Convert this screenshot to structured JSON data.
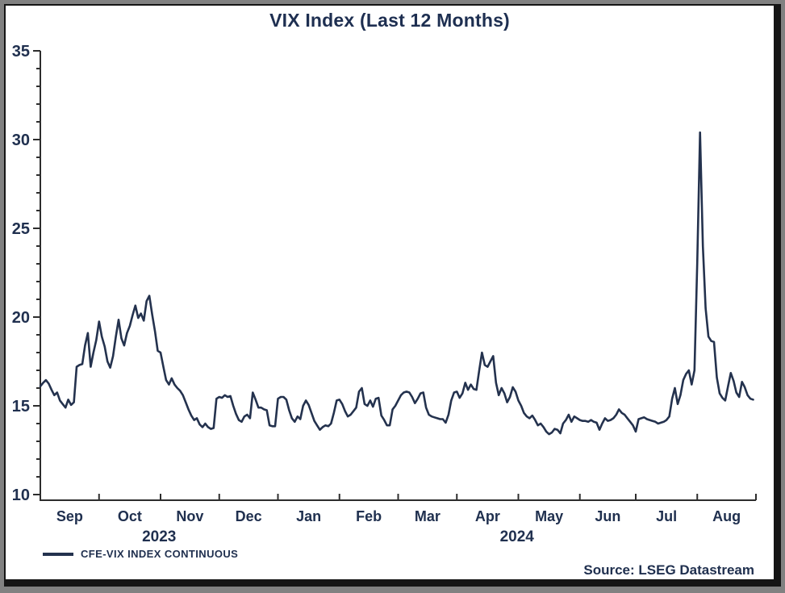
{
  "title": "VIX Index (Last 12 Months)",
  "legend": {
    "label": "CFE-VIX INDEX CONTINUOUS",
    "swatch_color": "#24324e"
  },
  "source": "Source: LSEG Datastream",
  "colors": {
    "line": "#24324e",
    "text": "#20304f",
    "axis": "#2d2d2d",
    "frame_border": "#151515",
    "page_background": "#818181",
    "canvas_background": "#ffffff"
  },
  "chart_data": {
    "type": "line",
    "title": "VIX Index (Last 12 Months)",
    "xlabel": "",
    "ylabel": "",
    "ylim": [
      10,
      35
    ],
    "y_major_step": 5,
    "y_minor_step": 1,
    "y_tick_labels": [
      "10",
      "15",
      "20",
      "25",
      "30",
      "35"
    ],
    "grid": false,
    "legend_position": "bottom-left",
    "x_month_labels": [
      "Sep",
      "Oct",
      "Nov",
      "Dec",
      "Jan",
      "Feb",
      "Mar",
      "Apr",
      "May",
      "Jun",
      "Jul",
      "Aug"
    ],
    "x_year_labels": [
      {
        "label": "2023",
        "month_span": [
          0,
          4
        ]
      },
      {
        "label": "2024",
        "month_span": [
          4,
          12
        ]
      }
    ],
    "month_day_offsets": [
      0,
      21,
      43,
      64,
      85,
      107,
      128,
      149,
      171,
      193,
      213,
      235,
      256
    ],
    "series": [
      {
        "name": "CFE-VIX INDEX CONTINUOUS",
        "values": [
          16.1,
          16.3,
          16.45,
          16.25,
          15.9,
          15.6,
          15.75,
          15.3,
          15.1,
          14.9,
          15.35,
          15.05,
          15.2,
          17.2,
          17.3,
          17.35,
          18.4,
          19.1,
          17.2,
          18.0,
          18.7,
          19.75,
          18.9,
          18.35,
          17.5,
          17.15,
          17.8,
          18.9,
          19.85,
          18.8,
          18.4,
          19.1,
          19.5,
          20.1,
          20.65,
          19.95,
          20.2,
          19.8,
          20.9,
          21.2,
          20.15,
          19.2,
          18.1,
          18.0,
          17.2,
          16.45,
          16.2,
          16.55,
          16.2,
          16.0,
          15.85,
          15.6,
          15.2,
          14.8,
          14.45,
          14.2,
          14.3,
          13.95,
          13.8,
          14.0,
          13.8,
          13.7,
          13.75,
          15.4,
          15.5,
          15.45,
          15.6,
          15.5,
          15.55,
          15.0,
          14.55,
          14.2,
          14.1,
          14.4,
          14.5,
          14.3,
          15.75,
          15.35,
          14.9,
          14.9,
          14.8,
          14.75,
          13.9,
          13.85,
          13.85,
          15.4,
          15.5,
          15.5,
          15.35,
          14.75,
          14.3,
          14.1,
          14.4,
          14.25,
          15.0,
          15.3,
          15.05,
          14.6,
          14.15,
          13.9,
          13.65,
          13.8,
          13.9,
          13.85,
          14.0,
          14.6,
          15.3,
          15.35,
          15.1,
          14.7,
          14.4,
          14.5,
          14.7,
          14.9,
          15.8,
          16.0,
          15.1,
          15.0,
          15.3,
          14.95,
          15.4,
          15.45,
          14.45,
          14.2,
          13.9,
          13.9,
          14.8,
          15.0,
          15.3,
          15.6,
          15.75,
          15.8,
          15.75,
          15.5,
          15.15,
          15.4,
          15.7,
          15.75,
          14.9,
          14.5,
          14.4,
          14.35,
          14.3,
          14.25,
          14.25,
          14.05,
          14.5,
          15.3,
          15.75,
          15.8,
          15.45,
          15.7,
          16.3,
          15.9,
          16.2,
          15.95,
          15.9,
          17.0,
          18.0,
          17.3,
          17.2,
          17.5,
          17.8,
          16.3,
          15.6,
          16.0,
          15.7,
          15.2,
          15.5,
          16.05,
          15.8,
          15.3,
          15.0,
          14.6,
          14.4,
          14.3,
          14.45,
          14.2,
          13.9,
          14.0,
          13.8,
          13.55,
          13.4,
          13.5,
          13.7,
          13.65,
          13.45,
          14.0,
          14.2,
          14.5,
          14.1,
          14.4,
          14.3,
          14.2,
          14.15,
          14.15,
          14.1,
          14.2,
          14.1,
          14.05,
          13.65,
          14.0,
          14.3,
          14.15,
          14.2,
          14.3,
          14.5,
          14.8,
          14.6,
          14.5,
          14.3,
          14.1,
          13.9,
          13.55,
          14.25,
          14.3,
          14.35,
          14.25,
          14.2,
          14.15,
          14.1,
          14.0,
          14.05,
          14.1,
          14.2,
          14.4,
          15.4,
          16.0,
          15.1,
          15.6,
          16.45,
          16.8,
          17.0,
          16.2,
          17.0,
          23.0,
          30.4,
          24.0,
          20.5,
          18.9,
          18.65,
          18.6,
          16.6,
          15.7,
          15.45,
          15.3,
          16.1,
          16.85,
          16.4,
          15.75,
          15.5,
          16.35,
          16.05,
          15.6,
          15.4,
          15.35
        ]
      }
    ]
  }
}
